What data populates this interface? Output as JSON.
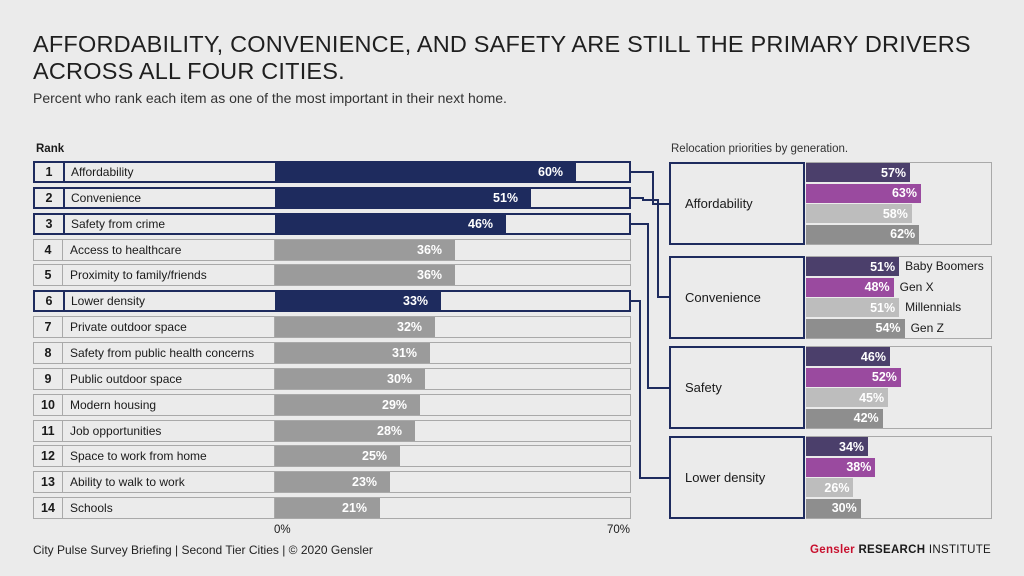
{
  "title": "AFFORDABILITY, CONVENIENCE, AND SAFETY ARE STILL THE PRIMARY DRIVERS ACROSS ALL FOUR CITIES.",
  "subtitle": "Percent who rank each item as one of the most important in their next home.",
  "rank_header": "Rank",
  "generation_header": "Relocation priorities by generation.",
  "footer": "City Pulse Survey Briefing  |  Second Tier Cities  |  © 2020 Gensler",
  "brand": {
    "name": "Gensler",
    "research": "RESEARCH",
    "institute": "INSTITUTE"
  },
  "colors": {
    "navy": "#1e2b5e",
    "gray_bar": "#9b9b9b",
    "boomers": "#4b3f6b",
    "genx": "#9a4a9f",
    "millennials": "#bdbdbd",
    "genz": "#8e8e8e",
    "brand_red": "#c8102e"
  },
  "chart_data": [
    {
      "type": "bar",
      "orientation": "horizontal",
      "title": "Rank",
      "xlim": [
        0,
        70
      ],
      "x_tick_labels": [
        "0%",
        "70%"
      ],
      "rows": [
        {
          "rank": "1",
          "label": "Affordability",
          "value": 60,
          "value_label": "60%",
          "highlight": true
        },
        {
          "rank": "2",
          "label": "Convenience",
          "value": 51,
          "value_label": "51%",
          "highlight": true
        },
        {
          "rank": "3",
          "label": "Safety from crime",
          "value": 46,
          "value_label": "46%",
          "highlight": true
        },
        {
          "rank": "4",
          "label": "Access to healthcare",
          "value": 36,
          "value_label": "36%",
          "highlight": false
        },
        {
          "rank": "5",
          "label": "Proximity to family/friends",
          "value": 36,
          "value_label": "36%",
          "highlight": false
        },
        {
          "rank": "6",
          "label": "Lower density",
          "value": 33,
          "value_label": "33%",
          "highlight": true
        },
        {
          "rank": "7",
          "label": "Private outdoor space",
          "value": 32,
          "value_label": "32%",
          "highlight": false
        },
        {
          "rank": "8",
          "label": "Safety from public health concerns",
          "value": 31,
          "value_label": "31%",
          "highlight": false
        },
        {
          "rank": "9",
          "label": "Public outdoor space",
          "value": 30,
          "value_label": "30%",
          "highlight": false
        },
        {
          "rank": "10",
          "label": "Modern housing",
          "value": 29,
          "value_label": "29%",
          "highlight": false
        },
        {
          "rank": "11",
          "label": "Job opportunities",
          "value": 28,
          "value_label": "28%",
          "highlight": false
        },
        {
          "rank": "12",
          "label": "Space to work from home",
          "value": 25,
          "value_label": "25%",
          "highlight": false
        },
        {
          "rank": "13",
          "label": "Ability to walk to work",
          "value": 23,
          "value_label": "23%",
          "highlight": false
        },
        {
          "rank": "14",
          "label": "Schools",
          "value": 21,
          "value_label": "21%",
          "highlight": false
        }
      ]
    },
    {
      "type": "bar",
      "orientation": "horizontal",
      "title": "Relocation priorities by generation.",
      "xlim": [
        0,
        70
      ],
      "series_names": [
        "Baby Boomers",
        "Gen X",
        "Millennials",
        "Gen Z"
      ],
      "groups": [
        {
          "label": "Affordability",
          "values": [
            57,
            63,
            58,
            62
          ],
          "value_labels": [
            "57%",
            "63%",
            "58%",
            "62%"
          ]
        },
        {
          "label": "Convenience",
          "values": [
            51,
            48,
            51,
            54
          ],
          "value_labels": [
            "51%",
            "48%",
            "51%",
            "54%"
          ]
        },
        {
          "label": "Safety",
          "values": [
            46,
            52,
            45,
            42
          ],
          "value_labels": [
            "46%",
            "52%",
            "45%",
            "42%"
          ]
        },
        {
          "label": "Lower density",
          "values": [
            34,
            38,
            26,
            30
          ],
          "value_labels": [
            "34%",
            "38%",
            "26%",
            "30%"
          ]
        }
      ]
    }
  ]
}
